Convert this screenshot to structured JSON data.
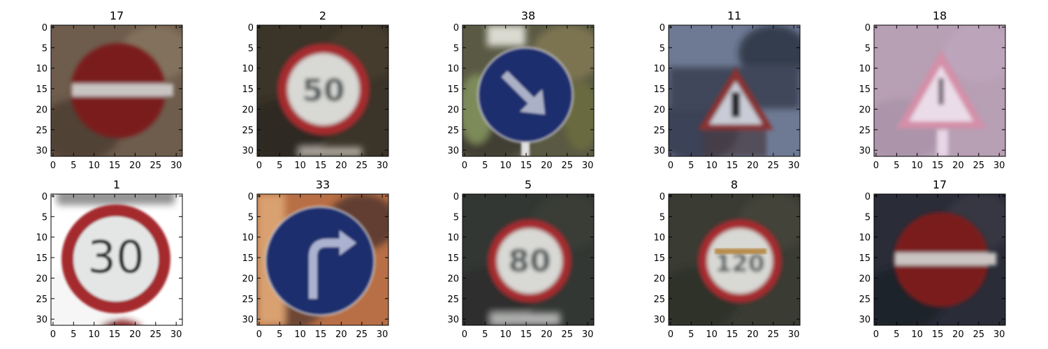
{
  "figure": {
    "axis_ticks": [
      "0",
      "5",
      "10",
      "15",
      "20",
      "25",
      "30"
    ],
    "panels": [
      {
        "title": "17",
        "sign": "no-entry"
      },
      {
        "title": "2",
        "sign": "speed-limit-50"
      },
      {
        "title": "38",
        "sign": "keep-right"
      },
      {
        "title": "11",
        "sign": "right-of-way-warning"
      },
      {
        "title": "18",
        "sign": "general-caution"
      },
      {
        "title": "1",
        "sign": "speed-limit-30"
      },
      {
        "title": "33",
        "sign": "turn-right-ahead"
      },
      {
        "title": "5",
        "sign": "speed-limit-80"
      },
      {
        "title": "8",
        "sign": "speed-limit-120"
      },
      {
        "title": "17",
        "sign": "no-entry"
      }
    ],
    "sign_texts": {
      "speed-limit-50": "50",
      "speed-limit-30": "30",
      "speed-limit-80": "80",
      "speed-limit-120": "120"
    }
  }
}
